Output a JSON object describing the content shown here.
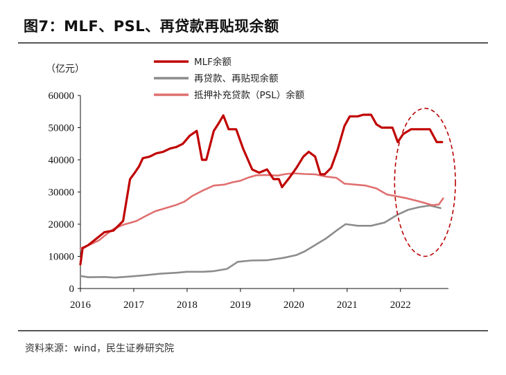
{
  "figure": {
    "title": "图7：MLF、PSL、再贷款再贴现余额",
    "source": "资料来源：wind，民生证券研究院"
  },
  "chart_data": {
    "type": "line",
    "unit": "（亿元）",
    "ylim": [
      0,
      60000
    ],
    "yticks": [
      "60000",
      "50000",
      "40000",
      "30000",
      "20000",
      "10000",
      "0"
    ],
    "xlim": [
      2016.0,
      2022.9
    ],
    "xticks": [
      "2016",
      "2017",
      "2018",
      "2019",
      "2020",
      "2021",
      "2022"
    ],
    "legend_position": "top",
    "series": [
      {
        "name": "MLF余额",
        "color": "#c00000",
        "width": 3.2,
        "points": [
          [
            2016.0,
            7500
          ],
          [
            2016.04,
            12500
          ],
          [
            2016.15,
            13500
          ],
          [
            2016.3,
            15500
          ],
          [
            2016.45,
            17500
          ],
          [
            2016.62,
            18000
          ],
          [
            2016.8,
            21000
          ],
          [
            2016.93,
            34000
          ],
          [
            2017.02,
            36000
          ],
          [
            2017.1,
            38000
          ],
          [
            2017.17,
            40500
          ],
          [
            2017.3,
            41000
          ],
          [
            2017.42,
            42000
          ],
          [
            2017.55,
            42500
          ],
          [
            2017.68,
            43500
          ],
          [
            2017.8,
            44000
          ],
          [
            2017.92,
            45000
          ],
          [
            2018.05,
            47500
          ],
          [
            2018.18,
            49000
          ],
          [
            2018.28,
            40000
          ],
          [
            2018.36,
            40000
          ],
          [
            2018.5,
            49000
          ],
          [
            2018.58,
            51000
          ],
          [
            2018.68,
            53800
          ],
          [
            2018.78,
            49500
          ],
          [
            2018.92,
            49500
          ],
          [
            2019.05,
            43500
          ],
          [
            2019.22,
            37000
          ],
          [
            2019.35,
            36000
          ],
          [
            2019.5,
            37000
          ],
          [
            2019.62,
            34000
          ],
          [
            2019.72,
            34000
          ],
          [
            2019.78,
            31500
          ],
          [
            2019.92,
            34500
          ],
          [
            2020.05,
            37500
          ],
          [
            2020.18,
            41000
          ],
          [
            2020.28,
            42500
          ],
          [
            2020.4,
            41000
          ],
          [
            2020.5,
            35500
          ],
          [
            2020.58,
            35500
          ],
          [
            2020.7,
            37500
          ],
          [
            2020.82,
            43000
          ],
          [
            2020.95,
            50500
          ],
          [
            2021.05,
            53500
          ],
          [
            2021.2,
            53500
          ],
          [
            2021.3,
            54000
          ],
          [
            2021.45,
            54000
          ],
          [
            2021.55,
            51000
          ],
          [
            2021.65,
            50000
          ],
          [
            2021.85,
            50000
          ],
          [
            2021.95,
            45500
          ],
          [
            2022.05,
            48000
          ],
          [
            2022.2,
            49500
          ],
          [
            2022.35,
            49500
          ],
          [
            2022.55,
            49500
          ],
          [
            2022.68,
            45500
          ],
          [
            2022.78,
            45500
          ]
        ]
      },
      {
        "name": "再贷款、再贴现余额",
        "color": "#8c8c8c",
        "width": 2.6,
        "points": [
          [
            2016.0,
            3900
          ],
          [
            2016.15,
            3500
          ],
          [
            2016.45,
            3600
          ],
          [
            2016.65,
            3400
          ],
          [
            2016.9,
            3700
          ],
          [
            2017.2,
            4100
          ],
          [
            2017.5,
            4600
          ],
          [
            2017.8,
            4900
          ],
          [
            2018.0,
            5200
          ],
          [
            2018.3,
            5200
          ],
          [
            2018.5,
            5400
          ],
          [
            2018.75,
            6100
          ],
          [
            2018.95,
            8300
          ],
          [
            2019.2,
            8700
          ],
          [
            2019.5,
            8800
          ],
          [
            2019.8,
            9500
          ],
          [
            2020.05,
            10400
          ],
          [
            2020.2,
            11500
          ],
          [
            2020.4,
            13500
          ],
          [
            2020.6,
            15500
          ],
          [
            2020.8,
            18000
          ],
          [
            2020.97,
            20000
          ],
          [
            2021.2,
            19500
          ],
          [
            2021.45,
            19500
          ],
          [
            2021.7,
            20500
          ],
          [
            2021.95,
            23000
          ],
          [
            2022.15,
            24500
          ],
          [
            2022.35,
            25300
          ],
          [
            2022.55,
            25800
          ],
          [
            2022.75,
            25000
          ]
        ]
      },
      {
        "name": "抵押补充贷款（PSL）余额",
        "color": "#e06f6f",
        "width": 2.6,
        "points": [
          [
            2016.0,
            12500
          ],
          [
            2016.2,
            13800
          ],
          [
            2016.35,
            15000
          ],
          [
            2016.5,
            17000
          ],
          [
            2016.62,
            18500
          ],
          [
            2016.8,
            19800
          ],
          [
            2016.95,
            20500
          ],
          [
            2017.05,
            21000
          ],
          [
            2017.22,
            22500
          ],
          [
            2017.4,
            24000
          ],
          [
            2017.6,
            25000
          ],
          [
            2017.8,
            26000
          ],
          [
            2017.95,
            27000
          ],
          [
            2018.1,
            28800
          ],
          [
            2018.3,
            30500
          ],
          [
            2018.5,
            32000
          ],
          [
            2018.7,
            32300
          ],
          [
            2018.85,
            33000
          ],
          [
            2019.0,
            33500
          ],
          [
            2019.15,
            34500
          ],
          [
            2019.3,
            35200
          ],
          [
            2019.5,
            35300
          ],
          [
            2019.7,
            35100
          ],
          [
            2019.85,
            35600
          ],
          [
            2020.0,
            35800
          ],
          [
            2020.2,
            35600
          ],
          [
            2020.4,
            35500
          ],
          [
            2020.6,
            34800
          ],
          [
            2020.8,
            34400
          ],
          [
            2020.95,
            32600
          ],
          [
            2021.15,
            32300
          ],
          [
            2021.35,
            32000
          ],
          [
            2021.55,
            31100
          ],
          [
            2021.75,
            29200
          ],
          [
            2021.95,
            28600
          ],
          [
            2022.1,
            28100
          ],
          [
            2022.3,
            27300
          ],
          [
            2022.45,
            26600
          ],
          [
            2022.6,
            25900
          ],
          [
            2022.72,
            26100
          ],
          [
            2022.8,
            28000
          ]
        ]
      }
    ],
    "annotation": {
      "shape": "ellipse",
      "style": "dashed",
      "color": "#b80000",
      "x_center": 2022.46,
      "y_center": 33000,
      "x_radius": 0.57,
      "y_radius": 23000
    }
  }
}
